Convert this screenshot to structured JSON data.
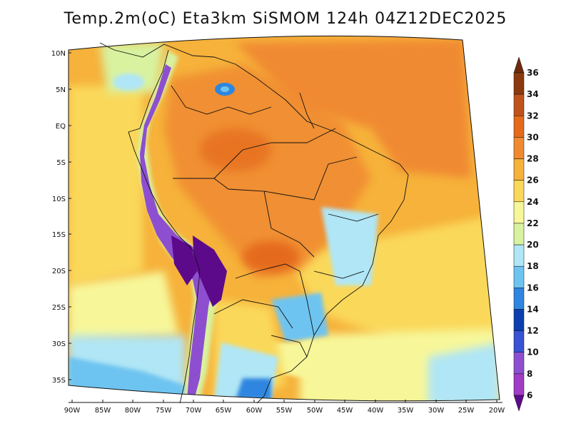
{
  "title": "Temp.2m(oC) Eta3km SiSMOM 124h 04Z12DEC2025",
  "map": {
    "lat_labels": [
      "10N",
      "5N",
      "EQ",
      "5S",
      "10S",
      "15S",
      "20S",
      "25S",
      "30S",
      "35S"
    ],
    "lon_labels": [
      "90W",
      "85W",
      "80W",
      "75W",
      "70W",
      "65W",
      "60W",
      "55W",
      "50W",
      "45W",
      "40W",
      "35W",
      "30W",
      "25W",
      "20W"
    ]
  },
  "colorbar": {
    "labels": [
      "36",
      "34",
      "32",
      "30",
      "28",
      "26",
      "24",
      "22",
      "20",
      "18",
      "16",
      "14",
      "12",
      "10",
      "8",
      "6"
    ],
    "colors": [
      "#6e2a0c",
      "#8b3a0f",
      "#c0531b",
      "#e56a1a",
      "#f08a30",
      "#f6b23a",
      "#fad85a",
      "#f7f79a",
      "#d8f2a0",
      "#b0e6f5",
      "#6ec4f0",
      "#2f86e0",
      "#0b3fb0",
      "#3a52d4",
      "#8d4fd0",
      "#a03cc6",
      "#5c0a8a"
    ],
    "unit": "oC"
  }
}
